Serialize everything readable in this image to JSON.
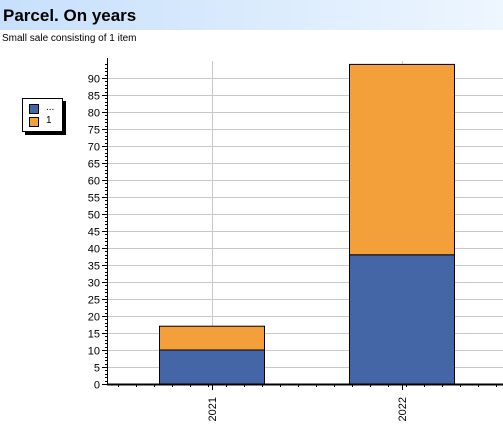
{
  "header": {
    "title": "Parcel. On years",
    "subtitle": "Small sale consisting of 1 item"
  },
  "legend": {
    "items": [
      {
        "label": "...",
        "color": "#4466a6"
      },
      {
        "label": "1",
        "color": "#f3a03a"
      }
    ]
  },
  "chart_data": {
    "type": "bar",
    "stacked": true,
    "categories": [
      "2021",
      "2022"
    ],
    "series": [
      {
        "name": "...",
        "color": "#4466a6",
        "values": [
          10,
          38
        ]
      },
      {
        "name": "1",
        "color": "#f3a03a",
        "values": [
          7,
          56
        ]
      }
    ],
    "ylim": [
      0,
      95
    ],
    "yticks": [
      0,
      5,
      10,
      15,
      20,
      25,
      30,
      35,
      40,
      45,
      50,
      55,
      60,
      65,
      70,
      75,
      80,
      85,
      90
    ],
    "grid": true,
    "legend_position": "left"
  }
}
